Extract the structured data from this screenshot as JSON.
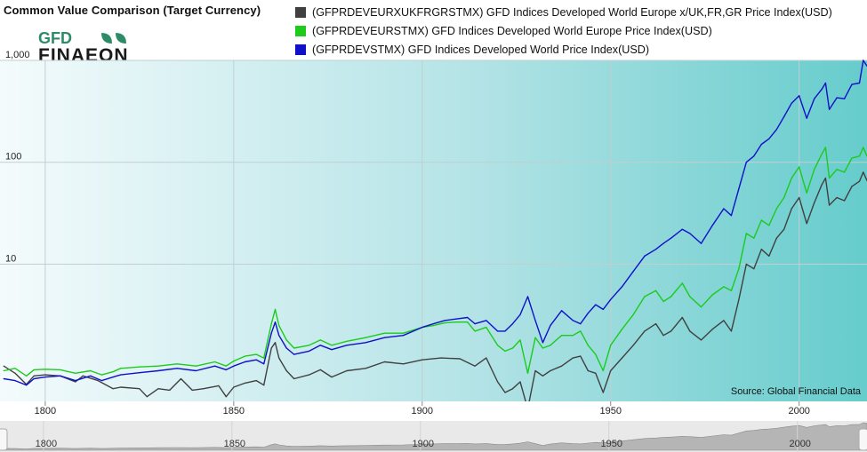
{
  "header": {
    "title": "Common Value Comparison (Target Currency)",
    "logo_top": "GFD",
    "logo_bottom": "FINAEON"
  },
  "source_note": "Source: Global Financial Data",
  "colors": {
    "dark_series": "#404040",
    "green_series": "#1ccb1c",
    "blue_series": "#1010c8",
    "background_left": "#f4fbfc",
    "background_right": "#66cccc",
    "logo_green": "#2e8b68"
  },
  "chart_data": {
    "type": "line",
    "yscale": "log",
    "xlim": [
      1788,
      2018
    ],
    "ylim": [
      0.45,
      1000
    ],
    "x_ticks": [
      "1800",
      "1850",
      "1900",
      "1950",
      "2000"
    ],
    "y_ticks": [
      "10",
      "100",
      "1,000"
    ],
    "navigator_ticks": [
      "1800",
      "1850",
      "1900",
      "1950",
      "2000"
    ],
    "series": [
      {
        "name": "(GFPRDEVEURXUKFRGRSTMX) GFD Indices Developed World Europe x/UK,FR,GR Price Index(USD)",
        "points": [
          [
            1789,
            1.0
          ],
          [
            1792,
            0.85
          ],
          [
            1795,
            0.66
          ],
          [
            1797,
            0.8
          ],
          [
            1800,
            0.82
          ],
          [
            1804,
            0.8
          ],
          [
            1808,
            0.7
          ],
          [
            1810,
            0.8
          ],
          [
            1814,
            0.72
          ],
          [
            1818,
            0.6
          ],
          [
            1820,
            0.62
          ],
          [
            1825,
            0.6
          ],
          [
            1827,
            0.5
          ],
          [
            1830,
            0.6
          ],
          [
            1833,
            0.58
          ],
          [
            1836,
            0.75
          ],
          [
            1839,
            0.58
          ],
          [
            1842,
            0.6
          ],
          [
            1846,
            0.64
          ],
          [
            1848,
            0.5
          ],
          [
            1850,
            0.62
          ],
          [
            1853,
            0.68
          ],
          [
            1856,
            0.72
          ],
          [
            1858,
            0.65
          ],
          [
            1860,
            1.5
          ],
          [
            1861,
            1.7
          ],
          [
            1862,
            1.2
          ],
          [
            1864,
            0.9
          ],
          [
            1866,
            0.75
          ],
          [
            1870,
            0.82
          ],
          [
            1873,
            0.92
          ],
          [
            1876,
            0.78
          ],
          [
            1880,
            0.9
          ],
          [
            1885,
            0.95
          ],
          [
            1890,
            1.1
          ],
          [
            1895,
            1.05
          ],
          [
            1900,
            1.15
          ],
          [
            1905,
            1.2
          ],
          [
            1910,
            1.18
          ],
          [
            1914,
            1.0
          ],
          [
            1917,
            1.2
          ],
          [
            1920,
            0.7
          ],
          [
            1922,
            0.55
          ],
          [
            1924,
            0.6
          ],
          [
            1926,
            0.7
          ],
          [
            1928,
            0.38
          ],
          [
            1930,
            0.9
          ],
          [
            1932,
            0.8
          ],
          [
            1934,
            0.9
          ],
          [
            1937,
            1.0
          ],
          [
            1940,
            1.2
          ],
          [
            1942,
            1.25
          ],
          [
            1944,
            0.9
          ],
          [
            1946,
            0.85
          ],
          [
            1948,
            0.55
          ],
          [
            1950,
            0.9
          ],
          [
            1953,
            1.2
          ],
          [
            1956,
            1.6
          ],
          [
            1959,
            2.2
          ],
          [
            1962,
            2.6
          ],
          [
            1964,
            2.0
          ],
          [
            1966,
            2.2
          ],
          [
            1969,
            3.0
          ],
          [
            1971,
            2.2
          ],
          [
            1974,
            1.8
          ],
          [
            1977,
            2.3
          ],
          [
            1980,
            2.8
          ],
          [
            1982,
            2.2
          ],
          [
            1984,
            4.5
          ],
          [
            1986,
            10
          ],
          [
            1988,
            9
          ],
          [
            1990,
            14
          ],
          [
            1992,
            12
          ],
          [
            1994,
            18
          ],
          [
            1996,
            22
          ],
          [
            1998,
            35
          ],
          [
            2000,
            45
          ],
          [
            2002,
            25
          ],
          [
            2004,
            40
          ],
          [
            2006,
            60
          ],
          [
            2007,
            70
          ],
          [
            2008,
            38
          ],
          [
            2010,
            45
          ],
          [
            2012,
            42
          ],
          [
            2014,
            58
          ],
          [
            2016,
            65
          ],
          [
            2017,
            80
          ],
          [
            2018,
            66
          ]
        ]
      },
      {
        "name": "(GFPRDEVEURSTMX) GFD Indices Developed World Europe Price Index(USD)",
        "points": [
          [
            1789,
            0.9
          ],
          [
            1792,
            0.95
          ],
          [
            1795,
            0.8
          ],
          [
            1797,
            0.92
          ],
          [
            1800,
            0.93
          ],
          [
            1804,
            0.92
          ],
          [
            1808,
            0.85
          ],
          [
            1812,
            0.9
          ],
          [
            1815,
            0.82
          ],
          [
            1818,
            0.88
          ],
          [
            1820,
            0.95
          ],
          [
            1825,
            0.98
          ],
          [
            1830,
            1.0
          ],
          [
            1835,
            1.05
          ],
          [
            1840,
            1.0
          ],
          [
            1845,
            1.1
          ],
          [
            1848,
            1.0
          ],
          [
            1850,
            1.12
          ],
          [
            1853,
            1.25
          ],
          [
            1856,
            1.3
          ],
          [
            1858,
            1.2
          ],
          [
            1860,
            2.6
          ],
          [
            1861,
            3.6
          ],
          [
            1862,
            2.5
          ],
          [
            1864,
            1.8
          ],
          [
            1866,
            1.5
          ],
          [
            1870,
            1.6
          ],
          [
            1873,
            1.8
          ],
          [
            1876,
            1.6
          ],
          [
            1880,
            1.75
          ],
          [
            1885,
            1.9
          ],
          [
            1890,
            2.1
          ],
          [
            1895,
            2.1
          ],
          [
            1900,
            2.4
          ],
          [
            1903,
            2.5
          ],
          [
            1906,
            2.65
          ],
          [
            1909,
            2.7
          ],
          [
            1912,
            2.7
          ],
          [
            1914,
            2.2
          ],
          [
            1917,
            2.4
          ],
          [
            1920,
            1.6
          ],
          [
            1922,
            1.4
          ],
          [
            1924,
            1.5
          ],
          [
            1926,
            1.8
          ],
          [
            1928,
            0.85
          ],
          [
            1930,
            1.9
          ],
          [
            1932,
            1.5
          ],
          [
            1934,
            1.6
          ],
          [
            1937,
            2.0
          ],
          [
            1940,
            2.0
          ],
          [
            1942,
            2.2
          ],
          [
            1944,
            1.6
          ],
          [
            1946,
            1.3
          ],
          [
            1948,
            0.9
          ],
          [
            1950,
            1.6
          ],
          [
            1953,
            2.3
          ],
          [
            1956,
            3.2
          ],
          [
            1959,
            4.8
          ],
          [
            1962,
            5.5
          ],
          [
            1964,
            4.3
          ],
          [
            1966,
            4.8
          ],
          [
            1969,
            6.5
          ],
          [
            1971,
            4.8
          ],
          [
            1974,
            3.8
          ],
          [
            1977,
            5.0
          ],
          [
            1980,
            6.0
          ],
          [
            1982,
            5.5
          ],
          [
            1984,
            9
          ],
          [
            1986,
            20
          ],
          [
            1988,
            18
          ],
          [
            1990,
            27
          ],
          [
            1992,
            24
          ],
          [
            1994,
            35
          ],
          [
            1996,
            45
          ],
          [
            1998,
            70
          ],
          [
            2000,
            90
          ],
          [
            2002,
            50
          ],
          [
            2004,
            85
          ],
          [
            2006,
            120
          ],
          [
            2007,
            140
          ],
          [
            2008,
            70
          ],
          [
            2010,
            85
          ],
          [
            2012,
            80
          ],
          [
            2014,
            110
          ],
          [
            2016,
            115
          ],
          [
            2017,
            140
          ],
          [
            2018,
            115
          ]
        ]
      },
      {
        "name": "(GFPRDEVSTMX) GFD Indices Developed World Price Index(USD)",
        "points": [
          [
            1789,
            0.75
          ],
          [
            1792,
            0.72
          ],
          [
            1795,
            0.65
          ],
          [
            1797,
            0.75
          ],
          [
            1800,
            0.78
          ],
          [
            1804,
            0.8
          ],
          [
            1808,
            0.72
          ],
          [
            1812,
            0.8
          ],
          [
            1815,
            0.72
          ],
          [
            1818,
            0.78
          ],
          [
            1820,
            0.82
          ],
          [
            1825,
            0.86
          ],
          [
            1830,
            0.9
          ],
          [
            1835,
            0.95
          ],
          [
            1840,
            0.9
          ],
          [
            1845,
            1.0
          ],
          [
            1848,
            0.92
          ],
          [
            1850,
            1.0
          ],
          [
            1853,
            1.1
          ],
          [
            1856,
            1.15
          ],
          [
            1858,
            1.05
          ],
          [
            1860,
            2.1
          ],
          [
            1861,
            2.7
          ],
          [
            1862,
            2.0
          ],
          [
            1864,
            1.5
          ],
          [
            1866,
            1.3
          ],
          [
            1870,
            1.4
          ],
          [
            1873,
            1.6
          ],
          [
            1876,
            1.45
          ],
          [
            1880,
            1.6
          ],
          [
            1885,
            1.7
          ],
          [
            1890,
            1.9
          ],
          [
            1895,
            2.0
          ],
          [
            1900,
            2.4
          ],
          [
            1903,
            2.6
          ],
          [
            1906,
            2.8
          ],
          [
            1909,
            2.9
          ],
          [
            1912,
            3.0
          ],
          [
            1914,
            2.6
          ],
          [
            1917,
            2.8
          ],
          [
            1920,
            2.2
          ],
          [
            1922,
            2.2
          ],
          [
            1924,
            2.6
          ],
          [
            1926,
            3.2
          ],
          [
            1928,
            4.8
          ],
          [
            1930,
            2.8
          ],
          [
            1932,
            1.7
          ],
          [
            1934,
            2.5
          ],
          [
            1937,
            3.5
          ],
          [
            1940,
            2.8
          ],
          [
            1942,
            2.6
          ],
          [
            1944,
            3.3
          ],
          [
            1946,
            4.0
          ],
          [
            1948,
            3.6
          ],
          [
            1950,
            4.5
          ],
          [
            1953,
            6.0
          ],
          [
            1956,
            8.5
          ],
          [
            1959,
            12
          ],
          [
            1962,
            14
          ],
          [
            1964,
            16
          ],
          [
            1966,
            18
          ],
          [
            1969,
            22
          ],
          [
            1971,
            20
          ],
          [
            1974,
            16
          ],
          [
            1977,
            24
          ],
          [
            1980,
            35
          ],
          [
            1982,
            30
          ],
          [
            1984,
            55
          ],
          [
            1986,
            100
          ],
          [
            1988,
            115
          ],
          [
            1990,
            150
          ],
          [
            1992,
            170
          ],
          [
            1994,
            210
          ],
          [
            1996,
            280
          ],
          [
            1998,
            380
          ],
          [
            2000,
            450
          ],
          [
            2002,
            270
          ],
          [
            2004,
            420
          ],
          [
            2006,
            520
          ],
          [
            2007,
            600
          ],
          [
            2008,
            330
          ],
          [
            2010,
            430
          ],
          [
            2012,
            420
          ],
          [
            2014,
            580
          ],
          [
            2016,
            600
          ],
          [
            2017,
            1000
          ],
          [
            2018,
            880
          ]
        ]
      }
    ]
  }
}
